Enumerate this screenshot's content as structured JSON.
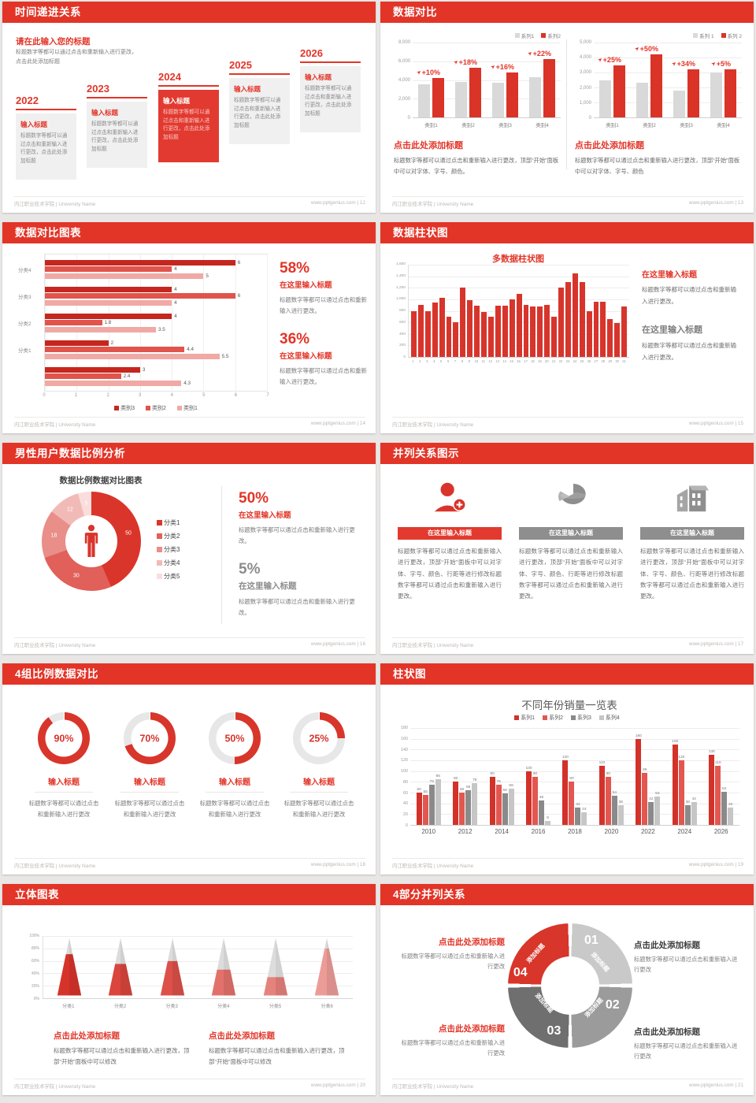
{
  "colors": {
    "accent": "#e23528",
    "chart_red": "#d7352c",
    "light_red": "#e2564f",
    "pink": "#efa9a5",
    "gray_bar": "#d9d9d9"
  },
  "footer": {
    "left": "内江职业技术学院 | University Name",
    "site": "www.pptgenius.com",
    "sep": " | "
  },
  "slides": {
    "s12": {
      "header": "时间递进关系",
      "page": "12",
      "heading": "请在此输入您的标题",
      "heading_body": "标题数字等都可以通过点击和重新输入进行更改，点击此处添加标题",
      "items": [
        {
          "year": "2022",
          "title": "输入标题",
          "body": "标题数字等都可以通过点击和重新输入进行更改，点击此处添加标题"
        },
        {
          "year": "2023",
          "title": "输入标题",
          "body": "标题数字等都可以通过点击和重新输入进行更改，点击此处添加标题"
        },
        {
          "year": "2024",
          "title": "输入标题",
          "body": "标题数字等都可以通过点击和重新输入进行更改，点击此处添加标题"
        },
        {
          "year": "2025",
          "title": "输入标题",
          "body": "标题数字等都可以通过点击和重新输入进行更改，点击此处添加标题"
        },
        {
          "year": "2026",
          "title": "输入标题",
          "body": "标题数字等都可以通过点击和重新输入进行更改，点击此处添加标题"
        }
      ]
    },
    "s13": {
      "header": "数据对比",
      "page": "13",
      "panels": [
        {
          "title": "点击此处添加标题",
          "body": "标题数字等都可以通过点击和重新输入进行更改，顶部“开始”面板中可以对字体、字号、颜色。"
        },
        {
          "title": "点击此处添加标题",
          "body": "标题数字等都可以通过点击和重新输入进行更改，顶部“开始”面板中可以对字体、字号、颜色"
        }
      ]
    },
    "s14": {
      "header": "数据对比图表",
      "page": "14",
      "blocks": [
        {
          "pct": "58%",
          "title": "在这里输入标题",
          "body": "标题数字等都可以通过点击和重新输入进行更改。"
        },
        {
          "pct": "36%",
          "title": "在这里输入标题",
          "body": "标题数字等都可以通过点击和重新输入进行更改。"
        }
      ]
    },
    "s15": {
      "header": "数据柱状图",
      "page": "15",
      "blocks": [
        {
          "title": "在这里输入标题",
          "body": "标题数字等都可以通过点击和重新输入进行更改。"
        },
        {
          "title": "在这里输入标题",
          "body": "标题数字等都可以通过点击和重新输入进行更改。"
        }
      ]
    },
    "s16": {
      "header": "男性用户数据比例分析",
      "page": "16",
      "blocks": [
        {
          "pct": "50%",
          "title": "在这里输入标题",
          "body": "标题数字等都可以通过点击和重新输入进行更改。"
        },
        {
          "pct": "5%",
          "title": "在这里输入标题",
          "body": "标题数字等都可以通过点击和重新输入进行更改。"
        }
      ]
    },
    "s17": {
      "header": "并列关系图示",
      "page": "17",
      "cols": [
        {
          "icon": "nurse-add-icon",
          "title": "在这里输入标题",
          "body": "标题数字等都可以通过点击和重新输入进行更改，顶部“开始”面板中可以对字体、字号、颜色、行距等进行修改标题数字等都可以通过点击和重新输入进行更改。"
        },
        {
          "icon": "pie-3d-icon",
          "title": "在这里输入标题",
          "body": "标题数字等都可以通过点击和重新输入进行更改，顶部“开始”面板中可以对字体、字号、颜色、行距等进行修改标题数字等都可以通过点击和重新输入进行更改。"
        },
        {
          "icon": "building-icon",
          "title": "在这里输入标题",
          "body": "标题数字等都可以通过点击和重新输入进行更改，顶部“开始”面板中可以对字体、字号、颜色、行距等进行修改标题数字等都可以通过点击和重新输入进行更改。"
        }
      ]
    },
    "s18": {
      "header": "4组比例数据对比",
      "page": "18",
      "items": [
        {
          "pct": "90%",
          "title": "输入标题",
          "body": "标题数字等都可以通过点击和重新输入进行更改"
        },
        {
          "pct": "70%",
          "title": "输入标题",
          "body": "标题数字等都可以通过点击和重新输入进行更改"
        },
        {
          "pct": "50%",
          "title": "输入标题",
          "body": "标题数字等都可以通过点击和重新输入进行更改"
        },
        {
          "pct": "25%",
          "title": "输入标题",
          "body": "标题数字等都可以通过点击和重新输入进行更改"
        }
      ]
    },
    "s19": {
      "header": "柱状图",
      "page": "19"
    },
    "s20": {
      "header": "立体图表",
      "page": "20",
      "blocks": [
        {
          "title": "点击此处添加标题",
          "body": "标题数字等都可以通过点击和重新输入进行更改，顶部“开始”面板中可以修改"
        },
        {
          "title": "点击此处添加标题",
          "body": "标题数字等都可以通过点击和重新输入进行更改，顶部“开始”面板中可以修改"
        }
      ]
    },
    "s21": {
      "header": "4部分并列关系",
      "page": "21",
      "blocks": [
        {
          "title": "点击此处添加标题",
          "body": "标题数字等都可以通过点击和重新输入进行更改"
        },
        {
          "title": "点击此处添加标题",
          "body": "标题数字等都可以通过点击和重新输入进行更改"
        },
        {
          "title": "点击此处添加标题",
          "body": "标题数字等都可以通过点击和重新输入进行更改"
        },
        {
          "title": "点击此处添加标题",
          "body": "标题数字等都可以通过点击和重新输入进行更改"
        }
      ]
    }
  },
  "chart_data": [
    {
      "id": "s13_left",
      "type": "bar",
      "slide": 13,
      "categories": [
        "类别1",
        "类别2",
        "类别3",
        "类别4"
      ],
      "series": [
        {
          "name": "系列1",
          "color": "#d9d9d9",
          "values": [
            3500,
            3800,
            3700,
            4300
          ]
        },
        {
          "name": "系列2",
          "color": "#da3327",
          "values": [
            4200,
            5300,
            4800,
            6200
          ]
        }
      ],
      "annotations": [
        "+10%",
        "+18%",
        "+16%",
        "+22%"
      ],
      "ylim": [
        0,
        8000
      ],
      "yticks": [
        "8,000",
        "6,000",
        "4,000",
        "2,000",
        "0"
      ],
      "grid": true,
      "legend_position": "top-right"
    },
    {
      "id": "s13_right",
      "type": "bar",
      "slide": 13,
      "categories": [
        "类别1",
        "类别2",
        "类别3",
        "类别4"
      ],
      "series": [
        {
          "name": "系列 1",
          "color": "#d9d9d9",
          "values": [
            2500,
            2300,
            1800,
            3000
          ]
        },
        {
          "name": "系列 2",
          "color": "#da3327",
          "values": [
            3500,
            4200,
            3200,
            3200
          ]
        }
      ],
      "annotations": [
        "+25%",
        "+50%",
        "+34%",
        "+5%"
      ],
      "ylim": [
        0,
        5000
      ],
      "yticks": [
        "5,000",
        "4,000",
        "3,000",
        "2,000",
        "1,000",
        "0"
      ],
      "grid": true,
      "legend_position": "top-right"
    },
    {
      "id": "s14_hbar",
      "type": "bar",
      "slide": 14,
      "orientation": "horizontal",
      "categories": [
        "分类4",
        "分类3",
        "分类2",
        "分类1",
        ""
      ],
      "series": [
        {
          "name": "类别3",
          "color": "#c5271f",
          "values": [
            6,
            4,
            4,
            2,
            3
          ]
        },
        {
          "name": "类别2",
          "color": "#e0544c",
          "values": [
            4,
            6,
            1.8,
            4.4,
            2.4
          ]
        },
        {
          "name": "类别1",
          "color": "#f0a9a4",
          "values": [
            5,
            4,
            3.5,
            5.5,
            4.3
          ]
        }
      ],
      "xlim": [
        0,
        7
      ],
      "xticks": [
        "0",
        "1",
        "2",
        "3",
        "4",
        "5",
        "6",
        "7"
      ],
      "grid": true,
      "legend_position": "bottom",
      "data_labels": true
    },
    {
      "id": "s15_bars",
      "type": "bar",
      "slide": 15,
      "title": "多数据柱状图",
      "x": [
        "1",
        "2",
        "3",
        "4",
        "5",
        "6",
        "7",
        "8",
        "9",
        "10",
        "11",
        "12",
        "13",
        "14",
        "15",
        "16",
        "17",
        "18",
        "19",
        "20",
        "21",
        "22",
        "23",
        "24",
        "25",
        "26",
        "27",
        "28",
        "29",
        "30",
        "31"
      ],
      "values": [
        800,
        900,
        800,
        950,
        1020,
        700,
        600,
        1200,
        980,
        890,
        780,
        700,
        890,
        890,
        1000,
        1100,
        900,
        880,
        870,
        900,
        700,
        1200,
        1300,
        1450,
        1300,
        800,
        960,
        960,
        660,
        590,
        870
      ],
      "color": "#d7352c",
      "ylim": [
        0,
        1600
      ],
      "yticks": [
        "1,600",
        "1,400",
        "1,200",
        "1,000",
        "800",
        "600",
        "400",
        "200",
        "0"
      ],
      "grid": true
    },
    {
      "id": "s16_donut",
      "type": "pie",
      "slide": 16,
      "title": "数据比例数据对比图表",
      "labels": [
        "分类1",
        "分类2",
        "分类3",
        "分类4",
        "分类5"
      ],
      "values": [
        50,
        30,
        18,
        12,
        5
      ],
      "colors": [
        "#da352b",
        "#e1605a",
        "#e98e89",
        "#f2bab7",
        "#f9dedd"
      ],
      "center_icon": "male-figure-icon",
      "legend_position": "right"
    },
    {
      "id": "s18_rings",
      "type": "progress-rings",
      "slide": 18,
      "values": [
        90,
        70,
        50,
        25
      ],
      "color": "#d8352b",
      "track": "#e7e7e7"
    },
    {
      "id": "s19_grouped",
      "type": "bar",
      "slide": 19,
      "title": "不同年份销量一览表",
      "categories": [
        "2010",
        "2012",
        "2014",
        "2016",
        "2018",
        "2020",
        "2022",
        "2024",
        "2026"
      ],
      "series": [
        {
          "name": "系列1",
          "color": "#d2322a",
          "values": [
            60,
            80,
            90,
            100,
            120,
            110,
            160,
            150,
            130
          ]
        },
        {
          "name": "系列2",
          "color": "#e25750",
          "values": [
            55,
            60,
            75,
            90,
            80,
            90,
            96,
            120,
            110
          ]
        },
        {
          "name": "系列3",
          "color": "#8a8a8a",
          "values": [
            75,
            65,
            58,
            46,
            32,
            54,
            42,
            36,
            62
          ]
        },
        {
          "name": "系列4",
          "color": "#c6c6c6",
          "values": [
            85,
            78,
            68,
            8,
            24,
            36,
            53,
            42,
            32
          ]
        }
      ],
      "ylim": [
        0,
        180
      ],
      "yticks": [
        "180",
        "160",
        "140",
        "120",
        "100",
        "80",
        "60",
        "40",
        "20",
        "0"
      ],
      "grid": true,
      "legend_position": "top",
      "data_labels": true
    },
    {
      "id": "s20_cones",
      "type": "bar",
      "slide": 20,
      "subtype": "cone",
      "categories": [
        "分类1",
        "分类2",
        "分类3",
        "分类4",
        "分类5",
        "分类6"
      ],
      "values_pct": [
        72,
        55,
        60,
        45,
        32,
        82
      ],
      "colors": [
        "#d6342b",
        "#da453d",
        "#dc5049",
        "#e3716b",
        "#e6827c",
        "#ec9c97"
      ],
      "yticks": [
        "100%",
        "80%",
        "60%",
        "40%",
        "20%",
        "0%"
      ],
      "grid": true
    },
    {
      "id": "s21_ring",
      "type": "pie",
      "slide": 21,
      "subtype": "ring-diagram",
      "segments": [
        {
          "num": "01",
          "label": "添加标题",
          "color": "#c9c9c9"
        },
        {
          "num": "02",
          "label": "添加标题",
          "color": "#9b9b9b"
        },
        {
          "num": "03",
          "label": "添加标题",
          "color": "#6f6f6f"
        },
        {
          "num": "04",
          "label": "添加标题",
          "color": "#d8352b"
        }
      ]
    }
  ]
}
